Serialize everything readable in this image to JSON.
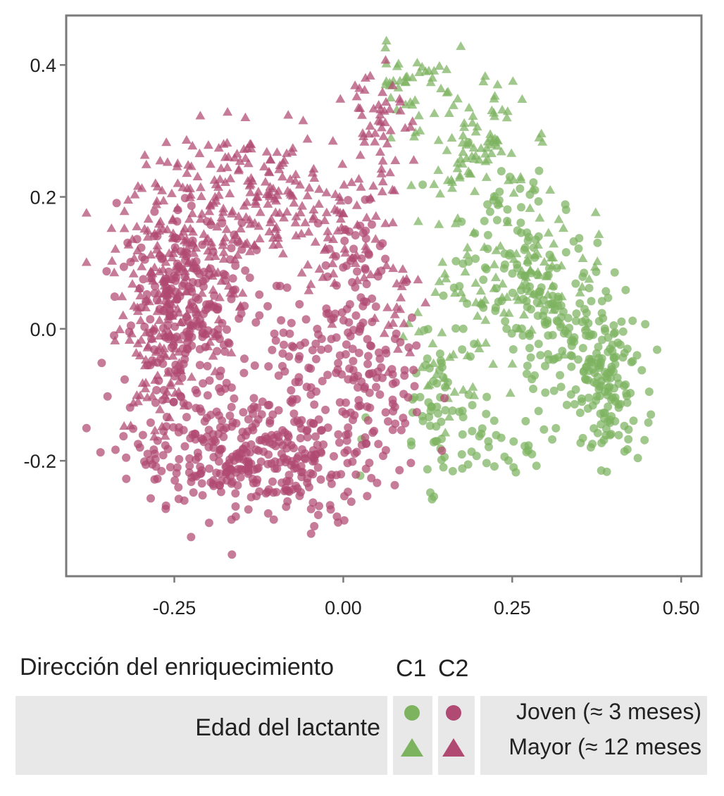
{
  "chart_data": {
    "type": "scatter",
    "title": "",
    "xlabel": "",
    "ylabel": "",
    "xlim": [
      -0.41,
      0.53
    ],
    "ylim": [
      -0.375,
      0.475
    ],
    "x_ticks": [
      "-0.25",
      "0.00",
      "0.25",
      "0.50"
    ],
    "x_tick_values": [
      -0.25,
      0.0,
      0.25,
      0.5
    ],
    "y_ticks": [
      "0.4",
      "0.2",
      "0.0",
      "-0.2"
    ],
    "y_tick_values": [
      0.4,
      0.2,
      0.0,
      -0.2
    ],
    "grid": false,
    "legend_placement": "bottom",
    "colors": {
      "C1": "#7db35f",
      "C2": "#b04a72"
    },
    "point_opacity": 0.72,
    "series": [
      {
        "name": "C1",
        "marker_young": "circle",
        "marker_old": "triangle",
        "clusters": [
          {
            "age": "young",
            "n": 140,
            "center": [
              0.39,
              -0.09
            ],
            "spread": [
              0.028,
              0.05
            ]
          },
          {
            "age": "young",
            "n": 110,
            "center": [
              0.32,
              0.02
            ],
            "spread": [
              0.04,
              0.055
            ]
          },
          {
            "age": "young",
            "n": 80,
            "center": [
              0.24,
              0.12
            ],
            "spread": [
              0.045,
              0.06
            ]
          },
          {
            "age": "young",
            "n": 60,
            "center": [
              0.2,
              -0.17
            ],
            "spread": [
              0.07,
              0.04
            ]
          },
          {
            "age": "young",
            "n": 40,
            "center": [
              0.13,
              -0.1
            ],
            "spread": [
              0.02,
              0.06
            ]
          },
          {
            "age": "old",
            "n": 90,
            "center": [
              0.19,
              0.28
            ],
            "spread": [
              0.04,
              0.05
            ]
          },
          {
            "age": "old",
            "n": 35,
            "center": [
              0.1,
              0.38
            ],
            "spread": [
              0.025,
              0.03
            ]
          },
          {
            "age": "old",
            "n": 55,
            "center": [
              0.3,
              0.1
            ],
            "spread": [
              0.05,
              0.06
            ]
          },
          {
            "age": "old",
            "n": 45,
            "center": [
              0.2,
              0.02
            ],
            "spread": [
              0.06,
              0.05
            ]
          },
          {
            "age": "old",
            "n": 20,
            "center": [
              0.14,
              -0.08
            ],
            "spread": [
              0.03,
              0.04
            ]
          }
        ]
      },
      {
        "name": "C2",
        "marker_young": "circle",
        "marker_old": "triangle",
        "clusters": [
          {
            "age": "young",
            "n": 230,
            "center": [
              -0.23,
              0.03
            ],
            "spread": [
              0.05,
              0.075
            ]
          },
          {
            "age": "young",
            "n": 230,
            "center": [
              -0.17,
              -0.19
            ],
            "spread": [
              0.07,
              0.045
            ]
          },
          {
            "age": "young",
            "n": 140,
            "center": [
              -0.05,
              -0.2
            ],
            "spread": [
              0.055,
              0.045
            ]
          },
          {
            "age": "young",
            "n": 110,
            "center": [
              -0.03,
              -0.04
            ],
            "spread": [
              0.06,
              0.06
            ]
          },
          {
            "age": "young",
            "n": 50,
            "center": [
              0.06,
              -0.11
            ],
            "spread": [
              0.025,
              0.06
            ]
          },
          {
            "age": "young",
            "n": 40,
            "center": [
              0.03,
              0.1
            ],
            "spread": [
              0.03,
              0.04
            ]
          },
          {
            "age": "old",
            "n": 200,
            "center": [
              -0.25,
              0.08
            ],
            "spread": [
              0.045,
              0.08
            ]
          },
          {
            "age": "old",
            "n": 170,
            "center": [
              -0.14,
              0.2
            ],
            "spread": [
              0.065,
              0.05
            ]
          },
          {
            "age": "old",
            "n": 60,
            "center": [
              -0.02,
              0.15
            ],
            "spread": [
              0.05,
              0.05
            ]
          },
          {
            "age": "old",
            "n": 55,
            "center": [
              0.05,
              0.32
            ],
            "spread": [
              0.02,
              0.055
            ]
          },
          {
            "age": "old",
            "n": 35,
            "center": [
              -0.28,
              -0.08
            ],
            "spread": [
              0.025,
              0.05
            ]
          },
          {
            "age": "old",
            "n": 25,
            "center": [
              0.07,
              0.04
            ],
            "spread": [
              0.02,
              0.06
            ]
          }
        ]
      }
    ]
  },
  "legend": {
    "title": "Dirección del enriquecimiento",
    "col_heads": [
      "C1",
      "C2"
    ],
    "row_label": "Edad del lactante",
    "keys": [
      "Joven (≈ 3 meses)",
      "Mayor (≈ 12 meses"
    ]
  }
}
